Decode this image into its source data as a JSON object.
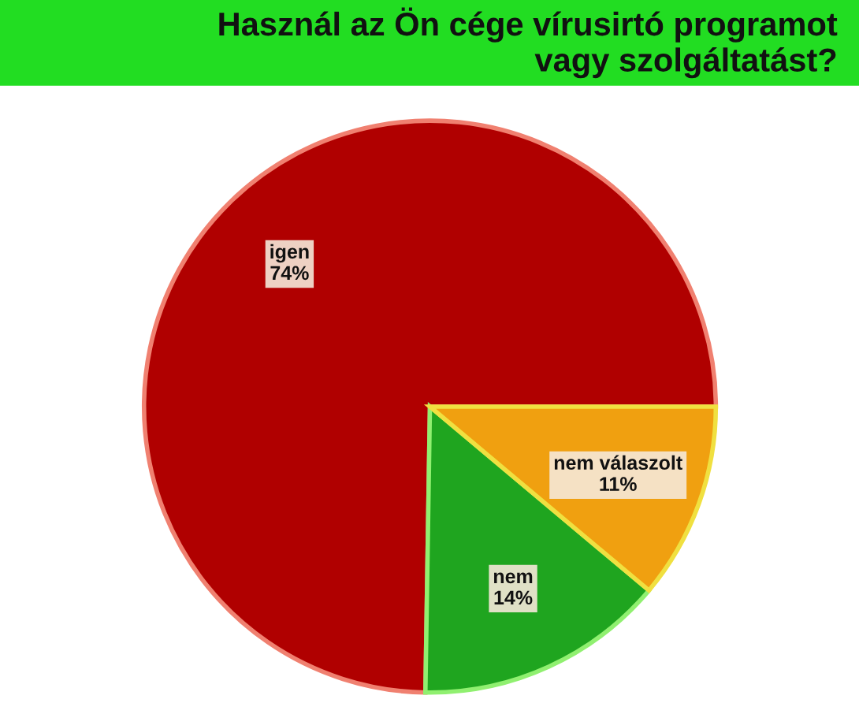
{
  "chart_data": {
    "type": "pie",
    "title": "Használ az Ön cége vírusirtó programot\nvagy szolgáltatást?",
    "categories": [
      "igen",
      "nem",
      "nem válaszolt"
    ],
    "values": [
      74,
      14,
      11
    ],
    "value_labels": [
      "74%",
      "14%",
      "11%"
    ],
    "colors": [
      "#b00000",
      "#1fa51f",
      "#f0a010"
    ],
    "legend": false
  }
}
